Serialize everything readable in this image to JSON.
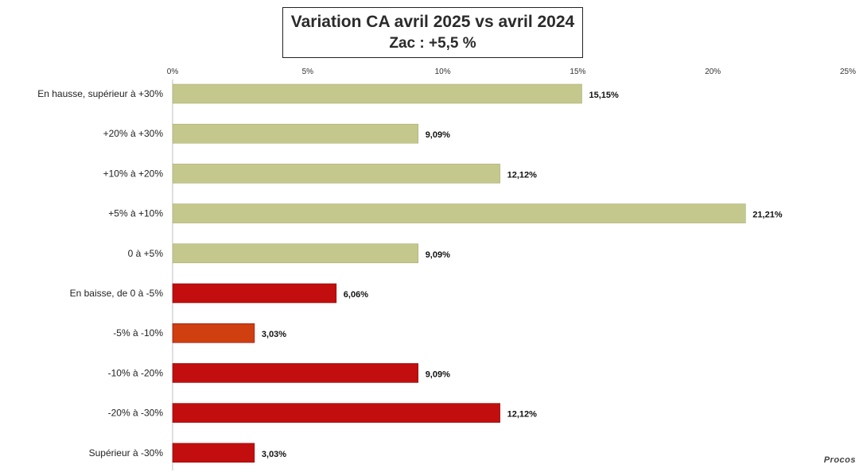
{
  "chart_data": {
    "type": "bar",
    "orientation": "horizontal",
    "title": "Variation CA avril 2025 vs avril 2024",
    "subtitle": "Zac : +5,5 %",
    "xlim": [
      0,
      25
    ],
    "xticks": [
      "0%",
      "5%",
      "10%",
      "15%",
      "20%",
      "25%"
    ],
    "categories": [
      "En hausse,  supérieur à +30%",
      "+20% à +30%",
      "+10% à +20%",
      "+5% à +10%",
      "0 à +5%",
      "En baisse,  de 0 à -5%",
      "-5% à -10%",
      "-10% à -20%",
      "-20% à -30%",
      "Supérieur à -30%"
    ],
    "values": [
      15.15,
      9.09,
      12.12,
      21.21,
      9.09,
      6.06,
      3.03,
      9.09,
      12.12,
      3.03
    ],
    "value_labels": [
      "15,15%",
      "9,09%",
      "12,12%",
      "21,21%",
      "9,09%",
      "6,06%",
      "3,03%",
      "9,09%",
      "12,12%",
      "3,03%"
    ],
    "colors": [
      "#c4c88c",
      "#c4c88c",
      "#c4c88c",
      "#c4c88c",
      "#c4c88c",
      "#c20e0e",
      "#cf3f10",
      "#c20e0e",
      "#c20e0e",
      "#c20e0e"
    ],
    "grid": false,
    "legend": "none"
  },
  "watermark": "Procos"
}
